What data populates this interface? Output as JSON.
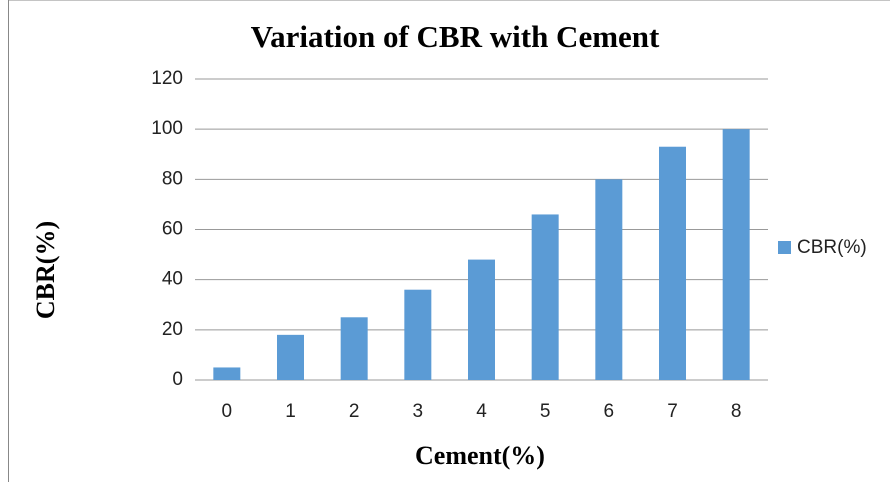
{
  "chart_data": {
    "type": "bar",
    "title": "Variation  of CBR with Cement",
    "x_label": "Cement(%)",
    "y_label": "CBR(%)",
    "categories": [
      "0",
      "1",
      "2",
      "3",
      "4",
      "5",
      "6",
      "7",
      "8"
    ],
    "series": [
      {
        "name": "CBR(%)",
        "color": "#5b9bd5",
        "values": [
          5,
          18,
          25,
          36,
          48,
          66,
          80,
          93,
          100
        ]
      }
    ],
    "ylim": [
      0,
      120
    ],
    "yticks": [
      0,
      20,
      40,
      60,
      80,
      100,
      120
    ],
    "grid": true,
    "legend": "right"
  }
}
